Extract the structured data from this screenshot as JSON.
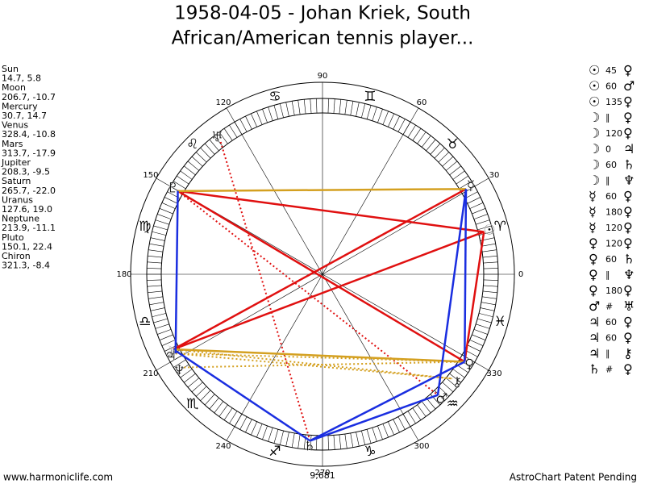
{
  "title_lines": [
    "1958-04-05 - Johan Kriek, South",
    "African/American tennis player..."
  ],
  "planets": [
    {
      "name": "Sun",
      "glyph": "☉",
      "position": "14.7, 5.8"
    },
    {
      "name": "Moon",
      "glyph": "☽",
      "position": "206.7, -10.7"
    },
    {
      "name": "Mercury",
      "glyph": "☿",
      "position": "30.7, 14.7"
    },
    {
      "name": "Venus",
      "glyph": "♀",
      "position": "328.4, -10.8"
    },
    {
      "name": "Mars",
      "glyph": "♂",
      "position": "313.7, -17.9"
    },
    {
      "name": "Jupiter",
      "glyph": "♃",
      "position": "208.3, -9.5"
    },
    {
      "name": "Saturn",
      "glyph": "♄",
      "position": "265.7, -22.0"
    },
    {
      "name": "Uranus",
      "glyph": "♅",
      "position": "127.6, 19.0"
    },
    {
      "name": "Neptune",
      "glyph": "♆",
      "position": "213.9, -11.1"
    },
    {
      "name": "Pluto",
      "glyph": "♇",
      "position": "150.1, 22.4"
    },
    {
      "name": "Chiron",
      "glyph": "⚷",
      "position": "321.3, -8.4"
    }
  ],
  "zodiac": [
    "♈",
    "♉",
    "♊",
    "♋",
    "♌",
    "♍",
    "♎",
    "♏",
    "♐",
    "♑",
    "♒",
    "♓"
  ],
  "degree_labels": [
    0,
    30,
    60,
    90,
    120,
    150,
    180,
    210,
    240,
    270,
    300,
    330
  ],
  "center_label": "9,681",
  "aspects": [
    {
      "from": "☉",
      "aspect": "45",
      "to": "♀"
    },
    {
      "from": "☉",
      "aspect": "60",
      "to": "♂"
    },
    {
      "from": "☉",
      "aspect": "135",
      "to": "♀"
    },
    {
      "from": "☽",
      "aspect": "∥",
      "to": "♀"
    },
    {
      "from": "☽",
      "aspect": "120",
      "to": "♀"
    },
    {
      "from": "☽",
      "aspect": "0",
      "to": "♃"
    },
    {
      "from": "☽",
      "aspect": "60",
      "to": "♄"
    },
    {
      "from": "☽",
      "aspect": "∥",
      "to": "♆"
    },
    {
      "from": "☿",
      "aspect": "60",
      "to": "♀"
    },
    {
      "from": "☿",
      "aspect": "180",
      "to": "♀"
    },
    {
      "from": "☿",
      "aspect": "120",
      "to": "♀"
    },
    {
      "from": "♀",
      "aspect": "120",
      "to": "♀"
    },
    {
      "from": "♀",
      "aspect": "60",
      "to": "♄"
    },
    {
      "from": "♀",
      "aspect": "∥",
      "to": "♆"
    },
    {
      "from": "♀",
      "aspect": "180",
      "to": "♀"
    },
    {
      "from": "♂",
      "aspect": "#",
      "to": "♅"
    },
    {
      "from": "♃",
      "aspect": "60",
      "to": "♀"
    },
    {
      "from": "♃",
      "aspect": "60",
      "to": "♀"
    },
    {
      "from": "♃",
      "aspect": "∥",
      "to": "⚷"
    },
    {
      "from": "♄",
      "aspect": "#",
      "to": "♀"
    }
  ],
  "aspect_lines": [
    {
      "from": "Sun",
      "to": "Moon",
      "color": "#e01010",
      "style": "solid"
    },
    {
      "from": "Pluto",
      "to": "Sun",
      "color": "#e01010",
      "style": "solid"
    },
    {
      "from": "Mercury",
      "to": "Moon",
      "color": "#e01010",
      "style": "solid"
    },
    {
      "from": "Pluto",
      "to": "Venus",
      "color": "#e01010",
      "style": "solid"
    },
    {
      "from": "Sun",
      "to": "Venus",
      "color": "#e01010",
      "style": "solid"
    },
    {
      "from": "Uranus",
      "to": "Saturn",
      "color": "#e01010",
      "style": "dotted"
    },
    {
      "from": "Pluto",
      "to": "Mars",
      "color": "#e01010",
      "style": "dotted"
    },
    {
      "from": "Pluto",
      "to": "Mercury",
      "color": "#d4a020",
      "style": "solid"
    },
    {
      "from": "Moon",
      "to": "Venus",
      "color": "#d4a020",
      "style": "solid"
    },
    {
      "from": "Jupiter",
      "to": "Venus",
      "color": "#d4a020",
      "style": "dotted"
    },
    {
      "from": "Neptune",
      "to": "Venus",
      "color": "#d4a020",
      "style": "dotted"
    },
    {
      "from": "Moon",
      "to": "Chiron",
      "color": "#d4a020",
      "style": "dotted"
    },
    {
      "from": "Jupiter",
      "to": "Chiron",
      "color": "#d4a020",
      "style": "dotted"
    },
    {
      "from": "Pluto",
      "to": "Jupiter",
      "color": "#1a2ee0",
      "style": "solid"
    },
    {
      "from": "Moon",
      "to": "Saturn",
      "color": "#1a2ee0",
      "style": "solid"
    },
    {
      "from": "Saturn",
      "to": "Mars",
      "color": "#1a2ee0",
      "style": "solid"
    },
    {
      "from": "Mars",
      "to": "Mercury",
      "color": "#1a2ee0",
      "style": "solid"
    },
    {
      "from": "Venus",
      "to": "Mercury",
      "color": "#1a2ee0",
      "style": "solid"
    },
    {
      "from": "Saturn",
      "to": "Venus",
      "color": "#1a2ee0",
      "style": "solid"
    }
  ],
  "footer": {
    "left": "www.harmoniclife.com",
    "right": "AstroChart Patent Pending"
  }
}
